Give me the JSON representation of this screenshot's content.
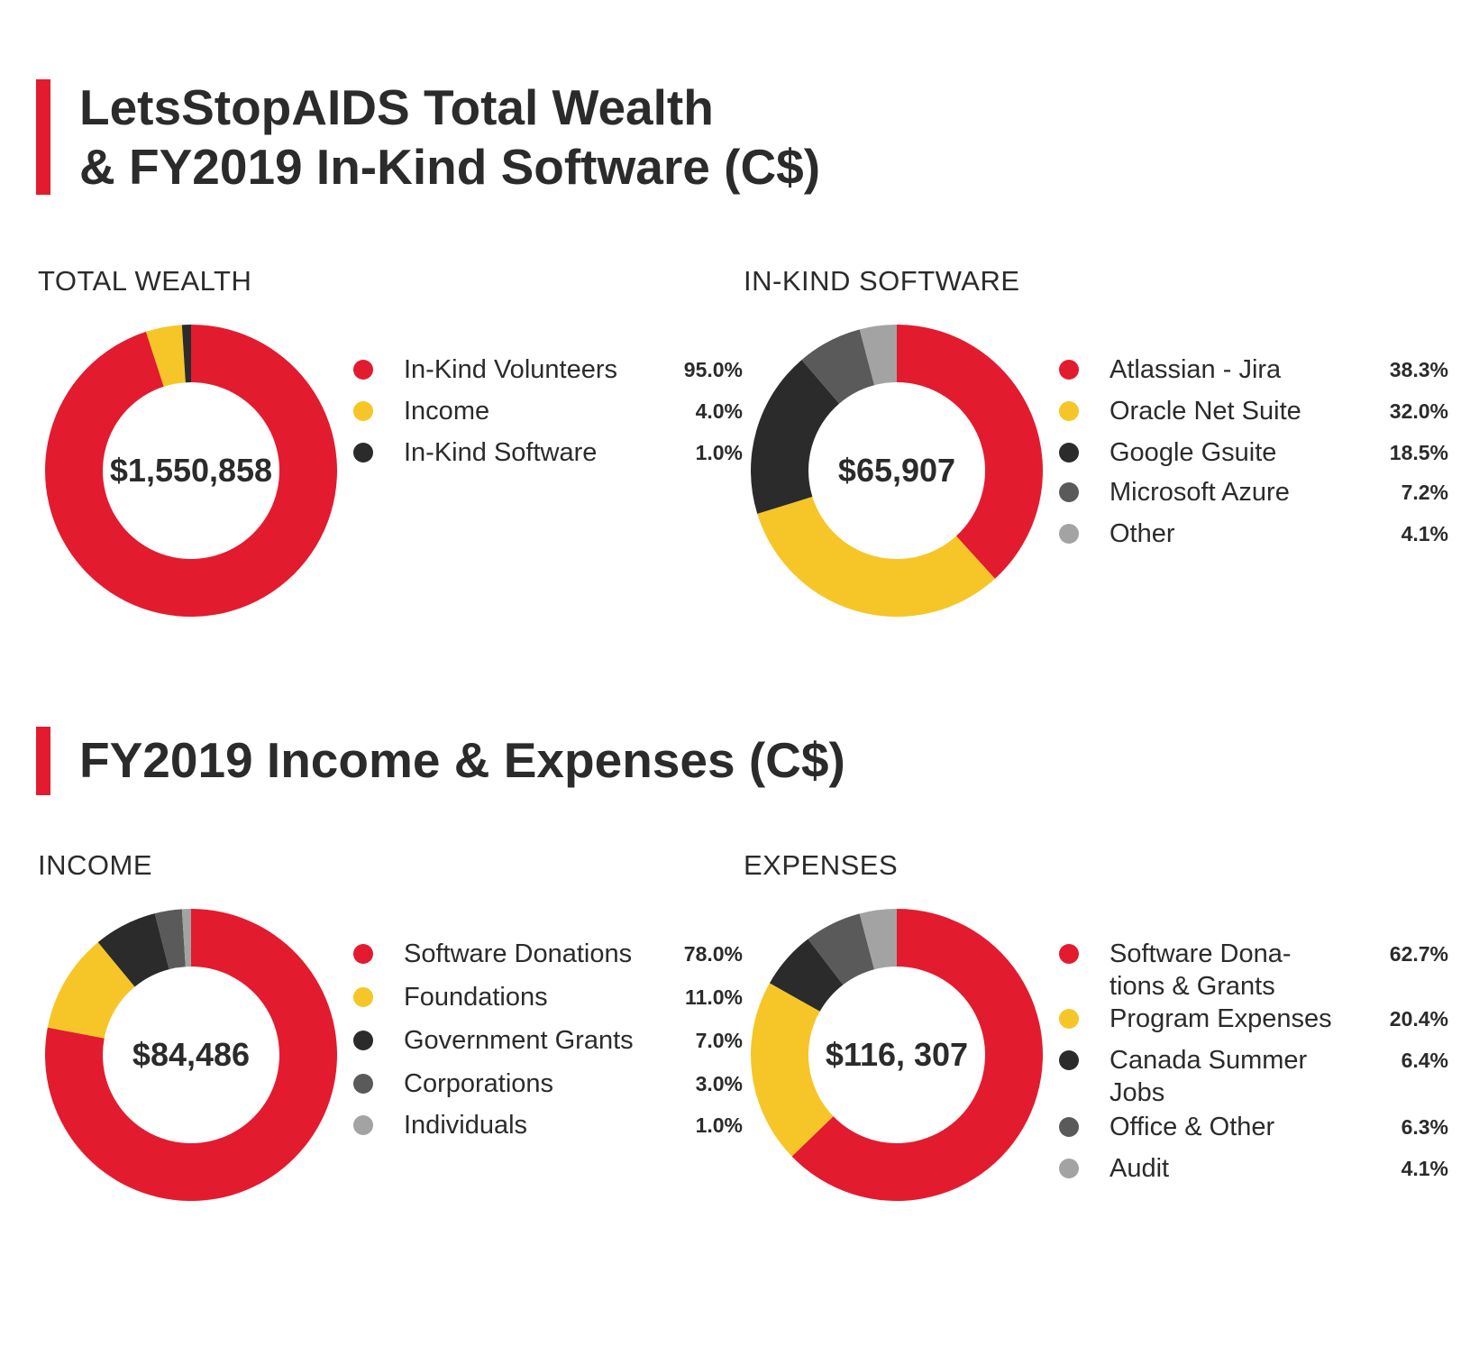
{
  "header": {
    "title_line1": "LetsStopAIDS Total Wealth",
    "title_line2": "& FY2019 In-Kind Software (C$)",
    "section2_title": "FY2019 Income & Expenses (C$)"
  },
  "colors": {
    "red": "#e31b2f",
    "yellow": "#f6c628",
    "black": "#2b2b2b",
    "dark_grey": "#5a5a5a",
    "light_grey": "#a3a3a3"
  },
  "chart_data": [
    {
      "type": "donut",
      "title": "TOTAL WEALTH",
      "center_label": "$1,550,858",
      "categories": [
        "In-Kind Volunteers",
        "Income",
        "In-Kind Software"
      ],
      "values": [
        95.0,
        4.0,
        1.0
      ],
      "value_labels": [
        "95.0%",
        "4.0%",
        "1.0%"
      ],
      "colors": [
        "#e31b2f",
        "#f6c628",
        "#2b2b2b"
      ]
    },
    {
      "type": "donut",
      "title": "IN-KIND SOFTWARE",
      "center_label": "$65,907",
      "categories": [
        "Atlassian - Jira",
        "Oracle Net Suite",
        "Google Gsuite",
        "Microsoft Azure",
        "Other"
      ],
      "values": [
        38.3,
        32.0,
        18.5,
        7.2,
        4.1
      ],
      "value_labels": [
        "38.3%",
        "32.0%",
        "18.5%",
        "7.2%",
        "4.1%"
      ],
      "colors": [
        "#e31b2f",
        "#f6c628",
        "#2b2b2b",
        "#5a5a5a",
        "#a3a3a3"
      ]
    },
    {
      "type": "donut",
      "title": "INCOME",
      "center_label": "$84,486",
      "categories": [
        "Software Donations",
        "Foundations",
        "Government Grants",
        "Corporations",
        "Individuals"
      ],
      "values": [
        78.0,
        11.0,
        7.0,
        3.0,
        1.0
      ],
      "value_labels": [
        "78.0%",
        "11.0%",
        "7.0%",
        "3.0%",
        "1.0%"
      ],
      "colors": [
        "#e31b2f",
        "#f6c628",
        "#2b2b2b",
        "#5a5a5a",
        "#a3a3a3"
      ]
    },
    {
      "type": "donut",
      "title": "EXPENSES",
      "center_label": "$116, 307",
      "categories": [
        "Software Dona- tions & Grants",
        "Program Expenses",
        "Canada Summer Jobs",
        "Office & Other",
        "Audit"
      ],
      "values": [
        62.7,
        20.4,
        6.4,
        6.3,
        4.1
      ],
      "value_labels": [
        "62.7%",
        "20.4%",
        "6.4%",
        "6.3%",
        "4.1%"
      ],
      "colors": [
        "#e31b2f",
        "#f6c628",
        "#2b2b2b",
        "#5a5a5a",
        "#a3a3a3"
      ]
    }
  ]
}
